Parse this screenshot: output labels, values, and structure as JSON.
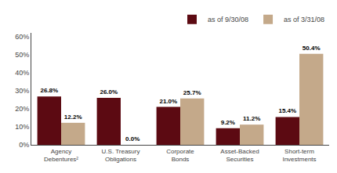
{
  "chart_data": {
    "type": "bar",
    "categories": [
      "Agency\nDebentures²",
      "U.S. Treasury\nObligations",
      "Corporate\nBonds",
      "Asset-Backed\nSecurities",
      "Short-term\nInvestments"
    ],
    "series": [
      {
        "name": "as of 9/30/08",
        "color": "#5c0a12",
        "values": [
          26.8,
          26.0,
          21.0,
          9.2,
          15.4
        ],
        "value_labels": [
          "26.8%",
          "26.0%",
          "21.0%",
          "9.2%",
          "15.4%"
        ]
      },
      {
        "name": "as of 3/31/08",
        "color": "#c4a98a",
        "values": [
          12.2,
          0.0,
          25.7,
          11.2,
          50.4
        ],
        "value_labels": [
          "12.2%",
          "0.0%",
          "25.7%",
          "11.2%",
          "50.4%"
        ]
      }
    ],
    "ylim": [
      0,
      62
    ],
    "yticks": [
      {
        "value": 0,
        "label": "0%"
      },
      {
        "value": 10,
        "label": "10%"
      },
      {
        "value": 20,
        "label": "20%"
      },
      {
        "value": 30,
        "label": "30%"
      },
      {
        "value": 40,
        "label": "40%"
      },
      {
        "value": 50,
        "label": "50%"
      },
      {
        "value": 60,
        "label": "60%"
      }
    ],
    "grid": false,
    "legend": "upper right",
    "data_labels": true
  }
}
